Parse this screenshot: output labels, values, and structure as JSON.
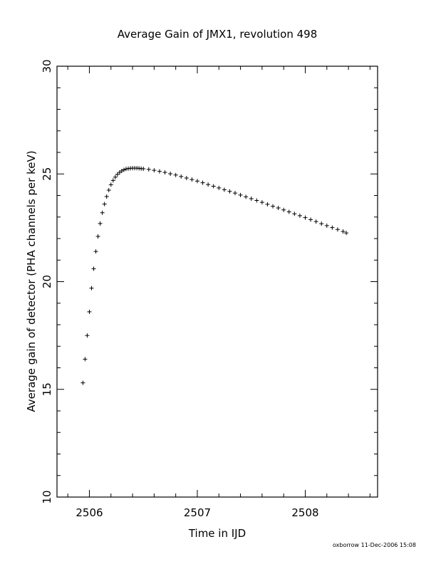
{
  "chart_data": {
    "type": "scatter",
    "title": "Average Gain of JMX1, revolution 498",
    "xlabel": "Time in IJD",
    "ylabel": "Average gain of detector (PHA channels per keV)",
    "xlim": [
      2505.7,
      2508.67
    ],
    "ylim": [
      10,
      30
    ],
    "x_ticks": [
      "2506",
      "2507",
      "2508"
    ],
    "y_ticks": [
      "10",
      "15",
      "20",
      "25",
      "30"
    ],
    "marker": "plus",
    "grid": false,
    "series": [
      {
        "x": [
          2505.94,
          2505.96,
          2505.98,
          2506.0,
          2506.02,
          2506.04,
          2506.06,
          2506.08,
          2506.1,
          2506.12,
          2506.14,
          2506.16,
          2506.18,
          2506.2,
          2506.22,
          2506.24,
          2506.26,
          2506.28,
          2506.3,
          2506.32,
          2506.34,
          2506.36,
          2506.38,
          2506.4,
          2506.42,
          2506.44,
          2506.46,
          2506.48,
          2506.5,
          2506.55,
          2506.6,
          2506.65,
          2506.7,
          2506.75,
          2506.8,
          2506.85,
          2506.9,
          2506.95,
          2507.0,
          2507.05,
          2507.1,
          2507.15,
          2507.2,
          2507.25,
          2507.3,
          2507.35,
          2507.4,
          2507.45,
          2507.5,
          2507.55,
          2507.6,
          2507.65,
          2507.7,
          2507.75,
          2507.8,
          2507.85,
          2507.9,
          2507.95,
          2508.0,
          2508.05,
          2508.1,
          2508.15,
          2508.2,
          2508.25,
          2508.3,
          2508.35,
          2508.38
        ],
        "y": [
          15.3,
          16.4,
          17.5,
          18.6,
          19.7,
          20.6,
          21.4,
          22.1,
          22.7,
          23.2,
          23.6,
          23.95,
          24.25,
          24.5,
          24.7,
          24.85,
          24.98,
          25.07,
          25.14,
          25.19,
          25.23,
          25.25,
          25.26,
          25.27,
          25.27,
          25.27,
          25.26,
          25.25,
          25.24,
          25.21,
          25.17,
          25.12,
          25.07,
          25.01,
          24.95,
          24.88,
          24.81,
          24.74,
          24.67,
          24.59,
          24.51,
          24.43,
          24.35,
          24.27,
          24.19,
          24.11,
          24.02,
          23.94,
          23.85,
          23.77,
          23.68,
          23.59,
          23.5,
          23.42,
          23.33,
          23.24,
          23.15,
          23.06,
          22.97,
          22.88,
          22.79,
          22.69,
          22.6,
          22.51,
          22.42,
          22.33,
          22.26
        ]
      }
    ]
  },
  "footer": "oxborrow 11-Dec-2006 15:08"
}
